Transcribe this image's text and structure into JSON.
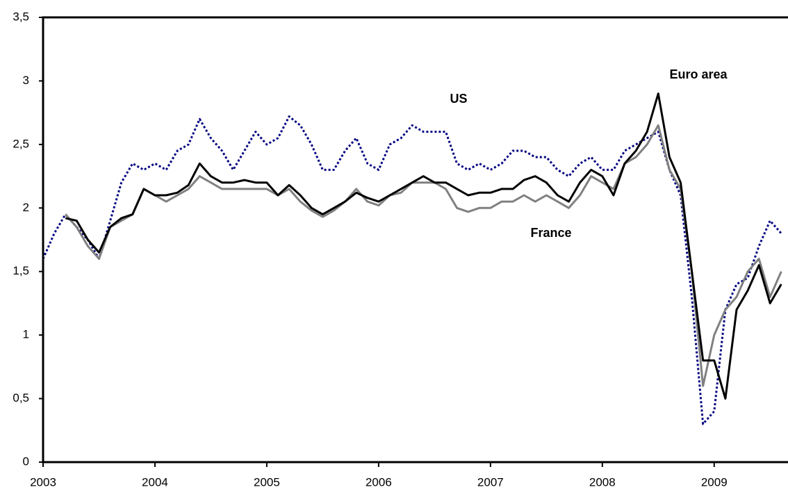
{
  "chart_data": {
    "type": "line",
    "x": [
      2003,
      2003.1,
      2003.2,
      2003.3,
      2003.4,
      2003.5,
      2003.6,
      2003.7,
      2003.8,
      2003.9,
      2004,
      2004.1,
      2004.2,
      2004.3,
      2004.4,
      2004.5,
      2004.6,
      2004.7,
      2004.8,
      2004.9,
      2005,
      2005.1,
      2005.2,
      2005.3,
      2005.4,
      2005.5,
      2005.6,
      2005.7,
      2005.8,
      2005.9,
      2006,
      2006.1,
      2006.2,
      2006.3,
      2006.4,
      2006.5,
      2006.6,
      2006.7,
      2006.8,
      2006.9,
      2007,
      2007.1,
      2007.2,
      2007.3,
      2007.4,
      2007.5,
      2007.6,
      2007.7,
      2007.8,
      2007.9,
      2008,
      2008.1,
      2008.2,
      2008.3,
      2008.4,
      2008.5,
      2008.6,
      2008.7,
      2008.8,
      2008.9,
      2009,
      2009.1,
      2009.2,
      2009.3,
      2009.4,
      2009.5,
      2009.6
    ],
    "series": [
      {
        "name": "US",
        "color": "#000080",
        "style": "dotted",
        "values": [
          1.6,
          1.8,
          1.95,
          1.85,
          1.75,
          1.6,
          1.9,
          2.2,
          2.35,
          2.3,
          2.35,
          2.3,
          2.45,
          2.5,
          2.7,
          2.55,
          2.45,
          2.3,
          2.45,
          2.6,
          2.5,
          2.55,
          2.72,
          2.65,
          2.5,
          2.3,
          2.3,
          2.45,
          2.55,
          2.35,
          2.3,
          2.5,
          2.55,
          2.65,
          2.6,
          2.6,
          2.6,
          2.35,
          2.3,
          2.35,
          2.3,
          2.35,
          2.45,
          2.45,
          2.4,
          2.4,
          2.3,
          2.25,
          2.35,
          2.4,
          2.3,
          2.3,
          2.45,
          2.5,
          2.55,
          2.6,
          2.3,
          2.1,
          1.3,
          0.3,
          0.4,
          1.2,
          1.4,
          1.45,
          1.7,
          1.9,
          1.8
        ]
      },
      {
        "name": "France",
        "color": "#808080",
        "style": "solid",
        "values": [
          null,
          null,
          1.95,
          1.85,
          1.7,
          1.6,
          1.85,
          1.9,
          1.95,
          2.15,
          2.1,
          2.05,
          2.1,
          2.15,
          2.25,
          2.2,
          2.15,
          2.15,
          2.15,
          2.15,
          2.15,
          2.1,
          2.15,
          2.05,
          1.98,
          1.93,
          1.98,
          2.05,
          2.15,
          2.05,
          2.02,
          2.1,
          2.12,
          2.2,
          2.2,
          2.2,
          2.15,
          2.0,
          1.97,
          2.0,
          2.0,
          2.05,
          2.05,
          2.1,
          2.05,
          2.1,
          2.05,
          2.0,
          2.1,
          2.25,
          2.2,
          2.15,
          2.35,
          2.4,
          2.5,
          2.65,
          2.3,
          2.15,
          1.5,
          0.6,
          1.0,
          1.2,
          1.3,
          1.5,
          1.6,
          1.3,
          1.5
        ]
      },
      {
        "name": "Euro area",
        "color": "#000000",
        "style": "solid",
        "values": [
          null,
          null,
          1.92,
          1.9,
          1.75,
          1.65,
          1.85,
          1.92,
          1.95,
          2.15,
          2.1,
          2.1,
          2.12,
          2.18,
          2.35,
          2.25,
          2.2,
          2.2,
          2.22,
          2.2,
          2.2,
          2.1,
          2.18,
          2.1,
          2.0,
          1.95,
          2.0,
          2.05,
          2.12,
          2.08,
          2.05,
          2.1,
          2.15,
          2.2,
          2.25,
          2.2,
          2.2,
          2.15,
          2.1,
          2.12,
          2.12,
          2.15,
          2.15,
          2.22,
          2.25,
          2.2,
          2.1,
          2.05,
          2.2,
          2.3,
          2.25,
          2.1,
          2.35,
          2.45,
          2.6,
          2.9,
          2.4,
          2.2,
          1.5,
          0.8,
          0.8,
          0.5,
          1.2,
          1.35,
          1.55,
          1.25,
          1.4
        ]
      }
    ],
    "xlim": [
      2003,
      2009.66
    ],
    "xticks": [
      2003,
      2004,
      2005,
      2006,
      2007,
      2008,
      2009
    ],
    "ylim": [
      0,
      3.5
    ],
    "yticks": [
      0,
      {
        "value": 0.5,
        "label": "0,5"
      },
      1,
      {
        "value": 1.5,
        "label": "1,5"
      },
      2,
      {
        "value": 2.5,
        "label": "2,5"
      },
      3,
      {
        "value": 3.5,
        "label": "3,5"
      }
    ],
    "grid": false
  }
}
